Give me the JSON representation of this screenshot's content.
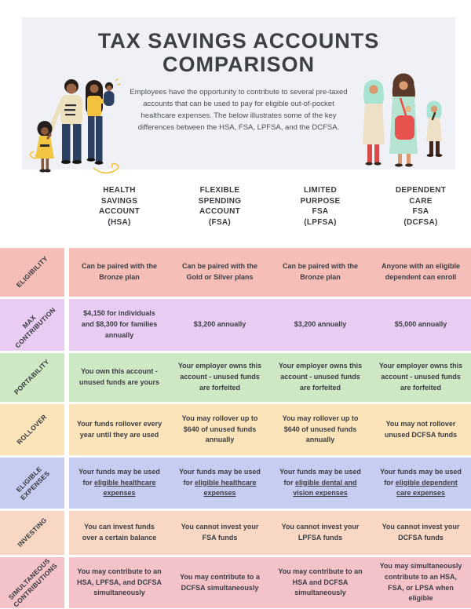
{
  "header": {
    "background": "#eff1f6",
    "title": "TAX SAVINGS ACCOUNTS\nCOMPARISON",
    "description": "Employees have the opportunity to contribute to several pre-taxed accounts that can be used to pay for eligible out-of-pocket healthcare expenses. The below illustrates some of the key differences between the HSA, FSA, LPFSA, and the DCFSA.",
    "illustrations": {
      "left": "family-illustration",
      "right": "hijab-women-illustration"
    }
  },
  "table": {
    "text_color": "#3b3e43",
    "columns": [
      {
        "id": "hsa",
        "label": "HEALTH\nSAVINGS\nACCOUNT\n(HSA)"
      },
      {
        "id": "fsa",
        "label": "FLEXIBLE\nSPENDING\nACCOUNT\n(FSA)"
      },
      {
        "id": "lpfsa",
        "label": "LIMITED\nPURPOSE\nFSA\n(LPFSA)"
      },
      {
        "id": "dcfsa",
        "label": "DEPENDENT\nCARE\nFSA\n(DCFSA)"
      }
    ],
    "rows": [
      {
        "id": "eligibility",
        "label_lines": [
          "ELIGIBILITY"
        ],
        "color": "#f6beb8",
        "cells": [
          [
            {
              "text": "Can be paired with the Bronze plan",
              "underline": false
            }
          ],
          [
            {
              "text": "Can be paired with the Gold or Silver plans",
              "underline": false
            }
          ],
          [
            {
              "text": "Can be paired with the Bronze plan",
              "underline": false
            }
          ],
          [
            {
              "text": "Anyone with an eligible dependent can enroll",
              "underline": false
            }
          ]
        ]
      },
      {
        "id": "max-contribution",
        "label_lines": [
          "MAX",
          "CONTRIBUTION"
        ],
        "color": "#e9ccf2",
        "cells": [
          [
            {
              "text": "$4,150 for individuals and $8,300 for families annually",
              "underline": false
            }
          ],
          [
            {
              "text": "$3,200 annually",
              "underline": false
            }
          ],
          [
            {
              "text": "$3,200 annually",
              "underline": false
            }
          ],
          [
            {
              "text": "$5,000 annually",
              "underline": false
            }
          ]
        ]
      },
      {
        "id": "portability",
        "label_lines": [
          "PORTABILITY"
        ],
        "color": "#cee8c5",
        "cells": [
          [
            {
              "text": "You own this account - unused funds are yours",
              "underline": false
            }
          ],
          [
            {
              "text": "Your employer owns this account - unused funds are forfeited",
              "underline": false
            }
          ],
          [
            {
              "text": "Your employer owns this account - unused funds are forfeited",
              "underline": false
            }
          ],
          [
            {
              "text": "Your employer owns this account - unused funds are forfeited",
              "underline": false
            }
          ]
        ]
      },
      {
        "id": "rollover",
        "label_lines": [
          "ROLLOVER"
        ],
        "color": "#fce4ba",
        "cells": [
          [
            {
              "text": "Your funds rollover every year until they are used",
              "underline": false
            }
          ],
          [
            {
              "text": "You may rollover up to $640 of unused funds annually",
              "underline": false
            }
          ],
          [
            {
              "text": "You may rollover up to $640 of unused funds annually",
              "underline": false
            }
          ],
          [
            {
              "text": "You may not rollover unused DCFSA funds",
              "underline": false
            }
          ]
        ]
      },
      {
        "id": "eligible-expenses",
        "label_lines": [
          "ELIGIBLE",
          "EXPENSES"
        ],
        "color": "#c7cdf1",
        "cells": [
          [
            {
              "text": "Your funds may be used for ",
              "underline": false
            },
            {
              "text": "eligible healthcare expenses",
              "underline": true
            }
          ],
          [
            {
              "text": "Your funds may be used for ",
              "underline": false
            },
            {
              "text": "eligible healthcare expenses",
              "underline": true
            }
          ],
          [
            {
              "text": "Your funds may be used for ",
              "underline": false
            },
            {
              "text": "eligible dental and vision expenses",
              "underline": true
            }
          ],
          [
            {
              "text": "Your funds may be used for ",
              "underline": false
            },
            {
              "text": "eligible dependent care expenses",
              "underline": true
            }
          ]
        ]
      },
      {
        "id": "investing",
        "label_lines": [
          "INVESTING"
        ],
        "color": "#f8d8c5",
        "cells": [
          [
            {
              "text": "You can invest funds over a certain balance",
              "underline": false
            }
          ],
          [
            {
              "text": "You cannot invest your FSA funds",
              "underline": false
            }
          ],
          [
            {
              "text": "You cannot invest your LPFSA funds",
              "underline": false
            }
          ],
          [
            {
              "text": "You cannot invest your DCFSA funds",
              "underline": false
            }
          ]
        ]
      },
      {
        "id": "simultaneous-contributions",
        "label_lines": [
          "SIMULTANEOUS",
          "CONTRIBUTIONS"
        ],
        "color": "#f4c3ca",
        "cells": [
          [
            {
              "text": "You may contribute to an HSA, LPFSA, and DCFSA simultaneously",
              "underline": false
            }
          ],
          [
            {
              "text": "You may contribute to a DCFSA simultaneously",
              "underline": false
            }
          ],
          [
            {
              "text": "You may contribute to an HSA and DCFSA simultaneously",
              "underline": false
            }
          ],
          [
            {
              "text": "You may simultaneously contribute to an HSA, FSA, or LPSA when eligible",
              "underline": false
            }
          ]
        ]
      }
    ]
  }
}
